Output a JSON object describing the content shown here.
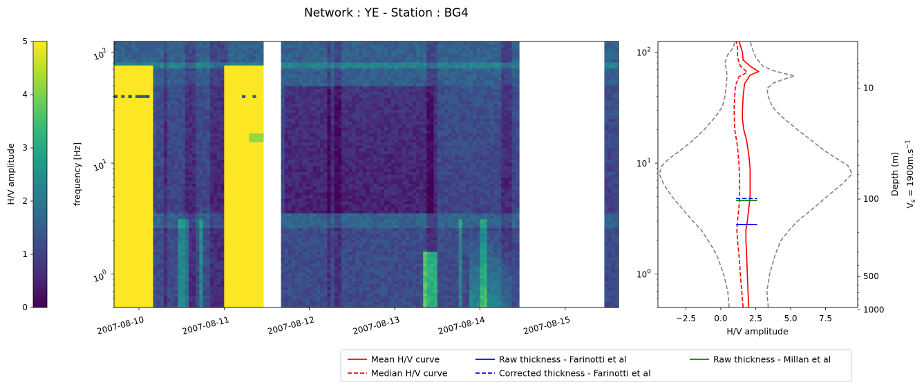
{
  "title": "Network : YE - Station : BG4",
  "colorbar": {
    "label": "H/V amplitude",
    "ticks": [
      "0",
      "1",
      "2",
      "3",
      "4",
      "5"
    ],
    "vmin": 0,
    "vmax": 5,
    "colormap": [
      "#440154",
      "#482878",
      "#3e4989",
      "#31688e",
      "#26828e",
      "#1f9e89",
      "#35b779",
      "#6ece58",
      "#b5de2b",
      "#fde725"
    ]
  },
  "spectrogram": {
    "ylabel": "frequency [Hz]",
    "y_ticks": [
      {
        "base": "10",
        "exp": "0"
      },
      {
        "base": "10",
        "exp": "1"
      },
      {
        "base": "10",
        "exp": "2"
      }
    ],
    "x_ticks": [
      "2007-08-10",
      "2007-08-11",
      "2007-08-12",
      "2007-08-13",
      "2007-08-14",
      "2007-08-15"
    ]
  },
  "hv_panel": {
    "xlabel": "H/V amplitude",
    "x_ticks": [
      "−2.5",
      "0.0",
      "2.5",
      "5.0",
      "7.5"
    ],
    "y_ticks": [
      {
        "base": "10",
        "exp": "0"
      },
      {
        "base": "10",
        "exp": "1"
      },
      {
        "base": "10",
        "exp": "2"
      }
    ],
    "depth_label": "Depth (m)",
    "vs_label_pre": "V",
    "vs_label_sub": "s",
    "vs_label_mid": " = 1900m.s",
    "vs_label_sup": "−1",
    "depth_ticks": [
      "10",
      "100",
      "500",
      "1000"
    ]
  },
  "legend": {
    "entries": [
      {
        "label": "Mean H/V curve",
        "color": "#ff0000",
        "dash": false
      },
      {
        "label": "Median H/V curve",
        "color": "#ff0000",
        "dash": true
      },
      {
        "label": "Raw thickness - Farinotti et al",
        "color": "#0000ff",
        "dash": false
      },
      {
        "label": "Corrected thickness - Farinotti et al",
        "color": "#0000ff",
        "dash": true
      },
      {
        "label": "Raw thickness - Millan et al",
        "color": "#008000",
        "dash": false
      }
    ]
  },
  "chart_data": [
    {
      "type": "heatmap",
      "title": "Network : YE - Station : BG4",
      "xlabel": "",
      "ylabel": "frequency [Hz]",
      "x_range": [
        "2007-08-09T17:00",
        "2007-08-15T15:00"
      ],
      "y_range_hz": [
        0.5,
        125
      ],
      "y_scale": "log",
      "value_range": [
        0,
        5
      ],
      "gaps": [
        [
          "2007-08-11T11:00",
          "2007-08-11T16:00"
        ],
        [
          "2007-08-14T11:00",
          "2007-08-15T11:00"
        ]
      ],
      "high_amplitude_periods": [
        {
          "start": "2007-08-09T17:00",
          "end": "2007-08-10T04:00",
          "freq_hz": [
            0.5,
            75
          ],
          "value": 5
        },
        {
          "start": "2007-08-11T00:00",
          "end": "2007-08-11T11:00",
          "freq_hz": [
            0.5,
            75
          ],
          "value": 5
        }
      ]
    },
    {
      "type": "line",
      "xlabel": "H/V amplitude",
      "ylabel": "",
      "x_range": [
        -4.5,
        9.8
      ],
      "y_range_hz": [
        0.5,
        125
      ],
      "y_scale": "log",
      "secondary_y": {
        "label": "Depth (m) / Vs = 1900m.s-1",
        "ticks": [
          10,
          100,
          500,
          1000
        ]
      },
      "series": [
        {
          "name": "Mean H/V curve",
          "style": "solid",
          "color": "#ff0000",
          "points": [
            [
              2.0,
              0.5
            ],
            [
              1.95,
              0.7
            ],
            [
              1.9,
              1.0
            ],
            [
              1.85,
              1.5
            ],
            [
              1.8,
              2.0
            ],
            [
              1.8,
              2.5
            ],
            [
              1.9,
              3.0
            ],
            [
              2.0,
              3.8
            ],
            [
              2.1,
              5.0
            ],
            [
              2.1,
              7.0
            ],
            [
              2.1,
              9.0
            ],
            [
              2.0,
              12.0
            ],
            [
              1.85,
              16.0
            ],
            [
              1.65,
              20.0
            ],
            [
              1.55,
              25.0
            ],
            [
              1.55,
              30.0
            ],
            [
              1.6,
              40.0
            ],
            [
              1.7,
              52.0
            ],
            [
              2.1,
              62.0
            ],
            [
              2.7,
              67.0
            ],
            [
              2.1,
              75.0
            ],
            [
              1.6,
              85.0
            ],
            [
              1.55,
              100.0
            ],
            [
              1.4,
              115.0
            ],
            [
              1.3,
              125.0
            ]
          ]
        },
        {
          "name": "Median H/V curve",
          "style": "dashed",
          "color": "#ff0000",
          "points": [
            [
              1.6,
              0.5
            ],
            [
              1.5,
              0.7
            ],
            [
              1.4,
              1.0
            ],
            [
              1.3,
              1.5
            ],
            [
              1.2,
              2.0
            ],
            [
              1.15,
              2.5
            ],
            [
              1.2,
              3.0
            ],
            [
              1.3,
              4.0
            ],
            [
              1.35,
              5.0
            ],
            [
              1.35,
              7.0
            ],
            [
              1.3,
              10.0
            ],
            [
              1.2,
              14.0
            ],
            [
              1.0,
              20.0
            ],
            [
              0.95,
              30.0
            ],
            [
              1.0,
              40.0
            ],
            [
              1.05,
              50.0
            ],
            [
              1.3,
              60.0
            ],
            [
              1.9,
              66.0
            ],
            [
              1.4,
              75.0
            ],
            [
              1.2,
              90.0
            ],
            [
              1.2,
              110.0
            ],
            [
              1.1,
              125.0
            ]
          ]
        },
        {
          "name": "Lower envelope",
          "style": "dashed",
          "color": "#808080",
          "points": [
            [
              0.6,
              0.5
            ],
            [
              0.5,
              0.7
            ],
            [
              0.2,
              1.0
            ],
            [
              -0.3,
              1.5
            ],
            [
              -0.9,
              2.0
            ],
            [
              -1.4,
              2.5
            ],
            [
              -2.0,
              3.0
            ],
            [
              -2.7,
              3.8
            ],
            [
              -3.5,
              5.0
            ],
            [
              -4.1,
              6.5
            ],
            [
              -4.4,
              8.0
            ],
            [
              -4.2,
              9.5
            ],
            [
              -3.7,
              11.0
            ],
            [
              -2.9,
              13.0
            ],
            [
              -2.0,
              16.0
            ],
            [
              -1.2,
              20.0
            ],
            [
              -0.4,
              26.0
            ],
            [
              0.1,
              32.0
            ],
            [
              0.3,
              40.0
            ],
            [
              0.4,
              52.0
            ],
            [
              0.45,
              62.0
            ],
            [
              0.4,
              70.0
            ],
            [
              0.3,
              80.0
            ],
            [
              0.5,
              95.0
            ],
            [
              0.9,
              110.0
            ],
            [
              1.0,
              125.0
            ]
          ]
        },
        {
          "name": "Upper envelope",
          "style": "dashed",
          "color": "#808080",
          "points": [
            [
              3.4,
              0.5
            ],
            [
              3.3,
              0.7
            ],
            [
              3.5,
              1.0
            ],
            [
              3.9,
              1.5
            ],
            [
              4.3,
              2.0
            ],
            [
              4.9,
              2.5
            ],
            [
              5.5,
              3.0
            ],
            [
              6.5,
              3.8
            ],
            [
              7.6,
              5.0
            ],
            [
              8.7,
              6.5
            ],
            [
              9.4,
              8.0
            ],
            [
              9.1,
              9.5
            ],
            [
              8.3,
              11.0
            ],
            [
              7.4,
              13.0
            ],
            [
              6.5,
              16.0
            ],
            [
              5.5,
              20.0
            ],
            [
              4.4,
              26.0
            ],
            [
              3.7,
              32.0
            ],
            [
              3.4,
              40.0
            ],
            [
              3.3,
              47.0
            ],
            [
              3.8,
              53.0
            ],
            [
              4.5,
              57.0
            ],
            [
              5.3,
              61.0
            ],
            [
              4.6,
              64.0
            ],
            [
              3.8,
              68.0
            ],
            [
              3.0,
              75.0
            ],
            [
              2.5,
              90.0
            ],
            [
              2.3,
              105.0
            ],
            [
              2.1,
              125.0
            ]
          ]
        }
      ],
      "thickness_markers": [
        {
          "name": "Raw thickness - Farinotti et al",
          "color": "#0000ff",
          "style": "solid",
          "freq_hz": 2.8,
          "x_extent": [
            1.1,
            2.6
          ]
        },
        {
          "name": "Corrected thickness - Farinotti et al",
          "color": "#0000ff",
          "style": "dashed",
          "freq_hz": 4.8,
          "x_extent": [
            1.1,
            2.6
          ]
        },
        {
          "name": "Raw thickness - Millan et al",
          "color": "#008000",
          "style": "solid",
          "freq_hz": 4.6,
          "x_extent": [
            1.1,
            2.6
          ]
        }
      ]
    }
  ]
}
